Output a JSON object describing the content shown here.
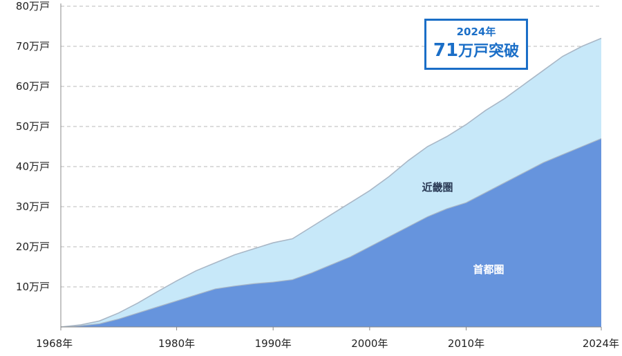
{
  "chart_data": {
    "type": "area",
    "stacked": true,
    "x": [
      1968,
      1970,
      1972,
      1974,
      1976,
      1978,
      1980,
      1982,
      1984,
      1986,
      1988,
      1990,
      1992,
      1994,
      1996,
      1998,
      2000,
      2002,
      2004,
      2006,
      2008,
      2010,
      2012,
      2014,
      2016,
      2018,
      2020,
      2022,
      2024
    ],
    "series": [
      {
        "name": "首都圏",
        "values": [
          0,
          0.3,
          0.8,
          2.0,
          3.5,
          5.0,
          6.5,
          8.0,
          9.5,
          10.2,
          10.8,
          11.2,
          11.8,
          13.5,
          15.5,
          17.5,
          20.0,
          22.5,
          25.0,
          27.5,
          29.5,
          31.0,
          33.5,
          36.0,
          38.5,
          41.0,
          43.0,
          45.0,
          47.0
        ]
      },
      {
        "name": "近畿圏",
        "values": [
          0,
          0.2,
          0.7,
          1.5,
          2.5,
          3.8,
          5.0,
          6.0,
          6.5,
          7.8,
          8.7,
          9.8,
          10.2,
          11.5,
          12.5,
          13.5,
          14.0,
          15.0,
          16.5,
          17.5,
          18.0,
          19.5,
          20.5,
          21.0,
          22.0,
          23.0,
          24.5,
          25.0,
          25.0
        ]
      }
    ],
    "y_ticks": [
      "10万戸",
      "20万戸",
      "30万戸",
      "40万戸",
      "50万戸",
      "60万戸",
      "70万戸",
      "80万戸"
    ],
    "x_ticks": [
      "1968年",
      "1980年",
      "1990年",
      "2000年",
      "2010年",
      "2024年"
    ],
    "x_tick_values": [
      1968,
      1980,
      1990,
      2000,
      2010,
      2024
    ],
    "ylim": [
      0,
      80
    ],
    "xlim": [
      1968,
      2024
    ],
    "grid": true,
    "annotation": {
      "line1": "2024年",
      "line2_big": "71",
      "line2_rest": "万戸突破"
    },
    "region_labels": {
      "kinki": "近畿圏",
      "shutoken": "首都圏"
    },
    "colors": {
      "shutoken_fill": "#6694dd",
      "kinki_fill": "#c7e8f9",
      "outline": "#a9b7c6",
      "grid": "#b8b8b8",
      "callout": "#1a6ec7",
      "kinki_label": "#2a3a55",
      "shutoken_label": "#ffffff"
    }
  }
}
